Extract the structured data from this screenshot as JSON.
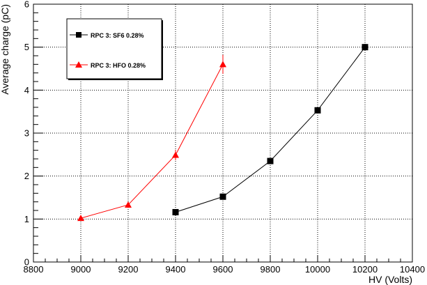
{
  "chart_data": {
    "type": "line",
    "title": "",
    "xlabel": "HV (Volts)",
    "ylabel": "Average charge (pC)",
    "xlim": [
      8800,
      10400
    ],
    "ylim": [
      0,
      6
    ],
    "x_ticks": [
      "8800",
      "9000",
      "9200",
      "9400",
      "9600",
      "9800",
      "10000",
      "10200",
      "10400"
    ],
    "y_ticks": [
      "0",
      "1",
      "2",
      "3",
      "4",
      "5",
      "6"
    ],
    "grid": true,
    "legend_position": "top-left",
    "series": [
      {
        "name": "RPC 3: SF6 0.28%",
        "color": "#000000",
        "marker": "square",
        "x": [
          9400,
          9600,
          9800,
          10000,
          10200
        ],
        "y": [
          1.16,
          1.52,
          2.35,
          3.53,
          5.0
        ],
        "err": [
          0.03,
          0.03,
          0.04,
          0.07,
          0.08
        ]
      },
      {
        "name": "RPC 3: HFO 0.28%",
        "color": "#ff0000",
        "marker": "triangle",
        "x": [
          9000,
          9200,
          9400,
          9600
        ],
        "y": [
          1.02,
          1.33,
          2.49,
          4.6
        ],
        "err": [
          0.02,
          0.07,
          0.12,
          0.22
        ]
      }
    ]
  }
}
